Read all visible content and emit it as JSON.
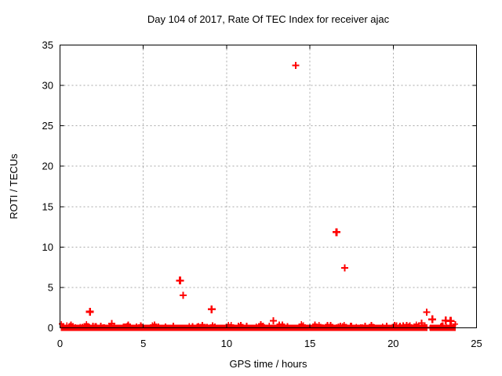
{
  "colors": {
    "marker": "#ff0000",
    "grid": "#a8a8a8",
    "axis": "#000000",
    "text": "#000000",
    "background": "#ffffff"
  },
  "chart_data": {
    "type": "scatter",
    "title": "Day 104 of 2017, Rate Of TEC Index for receiver ajac",
    "xlabel": "GPS time / hours",
    "ylabel": "ROTI / TECUs",
    "xlim": [
      0,
      25
    ],
    "ylim": [
      0,
      35
    ],
    "xticks": [
      0,
      5,
      10,
      15,
      20,
      25
    ],
    "yticks": [
      0,
      5,
      10,
      15,
      20,
      25,
      30,
      35
    ],
    "grid": true,
    "legend": "none",
    "marker_style": "plus",
    "marker_color": "#ff0000",
    "outliers": [
      {
        "x": 1.8,
        "y": 2.0,
        "bold": true
      },
      {
        "x": 3.1,
        "y": 0.55,
        "bold": false
      },
      {
        "x": 7.2,
        "y": 5.85,
        "bold": true
      },
      {
        "x": 7.4,
        "y": 4.0,
        "bold": false
      },
      {
        "x": 9.1,
        "y": 2.3,
        "bold": true
      },
      {
        "x": 12.8,
        "y": 0.85,
        "bold": false
      },
      {
        "x": 14.15,
        "y": 32.5,
        "bold": false
      },
      {
        "x": 16.6,
        "y": 11.85,
        "bold": true
      },
      {
        "x": 17.1,
        "y": 7.4,
        "bold": false
      },
      {
        "x": 21.7,
        "y": 0.6,
        "bold": false
      },
      {
        "x": 22.0,
        "y": 1.95,
        "bold": false
      },
      {
        "x": 22.35,
        "y": 1.05,
        "bold": true
      },
      {
        "x": 23.15,
        "y": 0.9,
        "bold": true
      },
      {
        "x": 23.45,
        "y": 0.85,
        "bold": true
      }
    ],
    "baseline_band": {
      "description": "dense cluster of ROTI values near 0 (0 to 0.4 TECUs) spanning the whole day",
      "x_start": 0.05,
      "x_end": 23.75,
      "gap_x": [
        22.05,
        22.2
      ],
      "y_max": 0.5,
      "texture_seed": 104,
      "texture_step": 0.12
    },
    "texture_points": [
      [
        0.6,
        0.22
      ],
      [
        2.45,
        0.3
      ],
      [
        4.05,
        0.27
      ],
      [
        5.9,
        0.2
      ],
      [
        6.8,
        0.28
      ],
      [
        8.3,
        0.25
      ],
      [
        11.2,
        0.3
      ],
      [
        12.2,
        0.28
      ],
      [
        13.35,
        0.42
      ],
      [
        14.6,
        0.35
      ],
      [
        15.3,
        0.45
      ],
      [
        16.05,
        0.4
      ],
      [
        17.5,
        0.3
      ],
      [
        18.7,
        0.4
      ],
      [
        19.6,
        0.3
      ],
      [
        20.4,
        0.3
      ],
      [
        21.0,
        0.35
      ],
      [
        22.9,
        0.3
      ]
    ]
  }
}
